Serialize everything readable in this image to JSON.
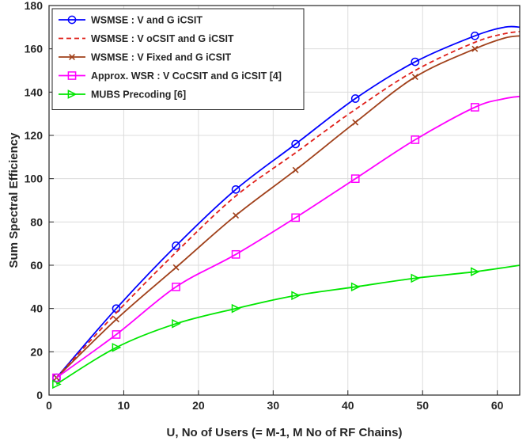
{
  "chart_data": {
    "type": "line",
    "xlabel": "U, No of Users (= M-1, M No of RF Chains)",
    "ylabel": "Sum Spectral Efficiency",
    "xlim": [
      0,
      63
    ],
    "ylim": [
      0,
      180
    ],
    "xticks": [
      0,
      10,
      20,
      30,
      40,
      50,
      60
    ],
    "yticks": [
      0,
      20,
      40,
      60,
      80,
      100,
      120,
      140,
      160,
      180
    ],
    "grid": true,
    "legend_position": "top-left",
    "series": [
      {
        "name": "WSMSE : V and G iCSIT",
        "color": "#0000ff",
        "line_style": "solid",
        "marker": "circle",
        "x": [
          1,
          9,
          17,
          25,
          33,
          41,
          49,
          57,
          61,
          63
        ],
        "y": [
          8,
          40,
          69,
          95,
          116,
          137,
          154,
          166,
          170,
          170
        ],
        "marker_x": [
          1,
          9,
          17,
          25,
          33,
          41,
          49,
          57
        ]
      },
      {
        "name": "WSMSE : V oCSIT and G iCSIT",
        "color": "#e0201a",
        "line_style": "dashed",
        "marker": "none",
        "x": [
          1,
          9,
          17,
          25,
          33,
          41,
          49,
          57,
          61,
          63
        ],
        "y": [
          8,
          38,
          66,
          92,
          112,
          132,
          150,
          163,
          167,
          168
        ]
      },
      {
        "name": "WSMSE : V Fixed and G iCSIT",
        "color": "#a0401a",
        "line_style": "solid",
        "marker": "x",
        "x": [
          1,
          9,
          17,
          25,
          33,
          41,
          49,
          57,
          61,
          63
        ],
        "y": [
          8,
          35,
          59,
          83,
          104,
          126,
          147,
          160,
          165,
          166
        ],
        "marker_x": [
          1,
          9,
          17,
          25,
          33,
          41,
          49,
          57
        ]
      },
      {
        "name": "Approx. WSR : V CoCSIT and G iCSIT [4]",
        "color": "#ff00ff",
        "line_style": "solid",
        "marker": "square",
        "x": [
          1,
          9,
          17,
          25,
          33,
          41,
          49,
          57,
          61,
          63
        ],
        "y": [
          8,
          28,
          50,
          65,
          82,
          100,
          118,
          133,
          137,
          138
        ],
        "marker_x": [
          1,
          9,
          17,
          25,
          33,
          41,
          49,
          57
        ]
      },
      {
        "name": "MUBS Precoding [6]",
        "color": "#00e600",
        "line_style": "solid",
        "marker": "triangle-right",
        "x": [
          1,
          9,
          17,
          25,
          33,
          41,
          49,
          57,
          63
        ],
        "y": [
          5,
          22,
          33,
          40,
          46,
          50,
          54,
          57,
          60
        ],
        "marker_x": [
          1,
          9,
          17,
          25,
          33,
          41,
          49,
          57
        ]
      }
    ]
  }
}
